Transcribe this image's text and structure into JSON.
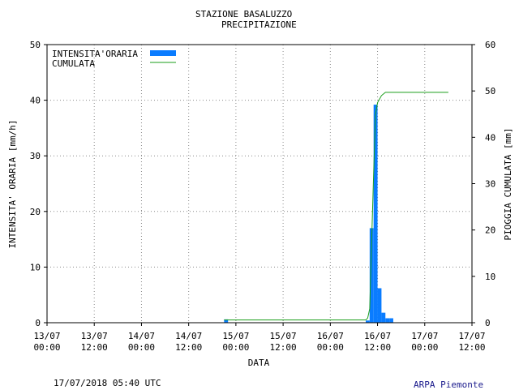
{
  "chart_data": {
    "type": "bar",
    "title": "STAZIONE BASALUZZO",
    "subtitle": "PRECIPITAZIONE",
    "xlabel": "DATA",
    "ylabel": "INTENSITA' ORARIA [mm/h]",
    "y2label": "PIOGGIA CUMULATA [mm]",
    "ylim": [
      0,
      50
    ],
    "y2lim": [
      0,
      60
    ],
    "yticks": [
      "0",
      "10",
      "20",
      "30",
      "40",
      "50"
    ],
    "y2ticks": [
      "0",
      "10",
      "20",
      "30",
      "40",
      "50",
      "60"
    ],
    "xticks": [
      {
        "date": "13/07",
        "time": "00:00"
      },
      {
        "date": "13/07",
        "time": "12:00"
      },
      {
        "date": "14/07",
        "time": "00:00"
      },
      {
        "date": "14/07",
        "time": "12:00"
      },
      {
        "date": "15/07",
        "time": "00:00"
      },
      {
        "date": "15/07",
        "time": "12:00"
      },
      {
        "date": "16/07",
        "time": "00:00"
      },
      {
        "date": "16/07",
        "time": "12:00"
      },
      {
        "date": "17/07",
        "time": "00:00"
      },
      {
        "date": "17/07",
        "time": "12:00"
      }
    ],
    "grid": true,
    "legend_position": "top-left",
    "series": [
      {
        "name": "INTENSITA'ORARIA",
        "kind": "bar",
        "axis": "left",
        "color": "#0a7cff",
        "data": [
          {
            "x": "14/07 21:00",
            "y": 0.6
          },
          {
            "x": "16/07 09:00",
            "y": 0.4
          },
          {
            "x": "16/07 10:00",
            "y": 17.0
          },
          {
            "x": "16/07 11:00",
            "y": 39.2
          },
          {
            "x": "16/07 12:00",
            "y": 6.2
          },
          {
            "x": "16/07 13:00",
            "y": 1.8
          },
          {
            "x": "16/07 14:00",
            "y": 0.8
          },
          {
            "x": "16/07 15:00",
            "y": 0.8
          }
        ]
      },
      {
        "name": "CUMULATA",
        "kind": "line",
        "axis": "right",
        "color": "#1a9e1a",
        "data": [
          {
            "x": "14/07 21:00",
            "y": 0.6
          },
          {
            "x": "16/07 09:00",
            "y": 0.6
          },
          {
            "x": "16/07 09:30",
            "y": 1.0
          },
          {
            "x": "16/07 10:00",
            "y": 3.0
          },
          {
            "x": "16/07 10:30",
            "y": 17.6
          },
          {
            "x": "16/07 11:00",
            "y": 32.0
          },
          {
            "x": "16/07 11:30",
            "y": 45.0
          },
          {
            "x": "16/07 12:00",
            "y": 47.5
          },
          {
            "x": "16/07 13:00",
            "y": 49.0
          },
          {
            "x": "16/07 14:00",
            "y": 49.7
          },
          {
            "x": "16/07 15:00",
            "y": 49.7
          },
          {
            "x": "17/07 06:00",
            "y": 49.7
          }
        ]
      }
    ]
  },
  "footer": {
    "timestamp": "17/07/2018 05:40 UTC",
    "source": "ARPA Piemonte"
  }
}
